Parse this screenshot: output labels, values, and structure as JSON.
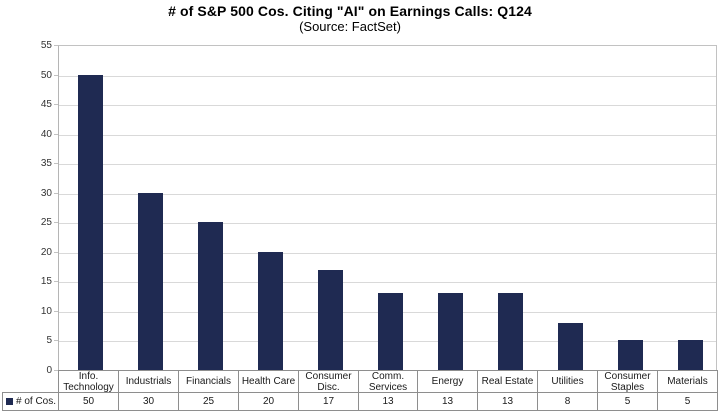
{
  "chart_data": {
    "type": "bar",
    "title": "# of S&P 500 Cos. Citing \"AI\" on Earnings Calls: Q124",
    "subtitle": "(Source: FactSet)",
    "categories": [
      "Info. Technology",
      "Industrials",
      "Financials",
      "Health Care",
      "Consumer Disc.",
      "Comm. Services",
      "Energy",
      "Real Estate",
      "Utilities",
      "Consumer Staples",
      "Materials"
    ],
    "series": [
      {
        "name": "# of Cos.",
        "values": [
          50,
          30,
          25,
          20,
          17,
          13,
          13,
          13,
          8,
          5,
          5
        ]
      }
    ],
    "xlabel": "",
    "ylabel": "",
    "ylim": [
      0,
      55
    ],
    "ytick_step": 5,
    "grid": true,
    "legend_position": "data-table-left",
    "data_table_shown": true,
    "colors": {
      "bar": "#1f2a52",
      "gridline": "#d9d9d9",
      "plot_border": "#c2c2c2",
      "table_border": "#8e8e8e",
      "text": "#1a1a1a",
      "axis_text": "#333333"
    }
  }
}
